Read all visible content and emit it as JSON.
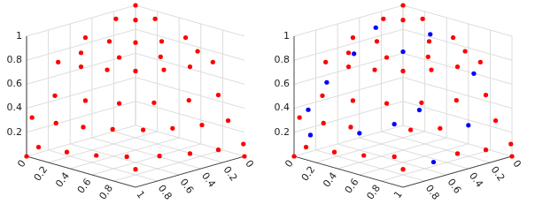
{
  "chart_data": [
    {
      "type": "scatter3d",
      "xlim": [
        0,
        1
      ],
      "ylim": [
        0,
        1
      ],
      "zlim": [
        0,
        1
      ],
      "xticks": [
        0,
        0.2,
        0.4,
        0.6,
        0.8,
        1
      ],
      "yticks": [
        0,
        0.2,
        0.4,
        0.6,
        0.8
      ],
      "zticks": [
        0.2,
        0.4,
        0.6,
        0.8,
        1
      ],
      "grid": true,
      "series": [
        {
          "color": "#ff0000",
          "marker": "circle",
          "values": [
            [
              0,
              0,
              1
            ],
            [
              0.25,
              0.07,
              0.97
            ],
            [
              0.18,
              0.18,
              0.97
            ],
            [
              0.07,
              0.25,
              0.97
            ],
            [
              0.5,
              0.04,
              0.87
            ],
            [
              0.45,
              0.21,
              0.87
            ],
            [
              0.35,
              0.35,
              0.87
            ],
            [
              0.21,
              0.45,
              0.87
            ],
            [
              0.04,
              0.5,
              0.87
            ],
            [
              0.61,
              0.11,
              0.79
            ],
            [
              0.51,
              0.36,
              0.79
            ],
            [
              0.31,
              0.54,
              0.79
            ],
            [
              0.05,
              0.62,
              0.79
            ],
            [
              0.71,
              0,
              0.71
            ],
            [
              0.68,
              0.18,
              0.71
            ],
            [
              0.61,
              0.35,
              0.71
            ],
            [
              0.5,
              0.5,
              0.71
            ],
            [
              0.35,
              0.61,
              0.71
            ],
            [
              0.18,
              0.68,
              0.71
            ],
            [
              0,
              0.71,
              0.71
            ],
            [
              0.86,
              0.12,
              0.5
            ],
            [
              0.8,
              0.34,
              0.5
            ],
            [
              0.69,
              0.54,
              0.5
            ],
            [
              0.52,
              0.69,
              0.5
            ],
            [
              0.32,
              0.81,
              0.5
            ],
            [
              0.1,
              0.86,
              0.5
            ],
            [
              0.95,
              0,
              0.31
            ],
            [
              0.93,
              0.2,
              0.31
            ],
            [
              0.87,
              0.39,
              0.31
            ],
            [
              0.77,
              0.56,
              0.31
            ],
            [
              0.64,
              0.71,
              0.31
            ],
            [
              0.48,
              0.82,
              0.31
            ],
            [
              0.29,
              0.9,
              0.31
            ],
            [
              0.1,
              0.95,
              0.31
            ],
            [
              0.99,
              0.1,
              0.1
            ],
            [
              0.94,
              0.31,
              0.1
            ],
            [
              0.86,
              0.5,
              0.1
            ],
            [
              0.74,
              0.66,
              0.1
            ],
            [
              0.58,
              0.8,
              0.1
            ],
            [
              0.4,
              0.9,
              0.1
            ],
            [
              0.21,
              0.97,
              0.1
            ],
            [
              0,
              0.99,
              0.1
            ],
            [
              1,
              0,
              0
            ],
            [
              0.71,
              0.71,
              0
            ],
            [
              0,
              1,
              0
            ]
          ]
        }
      ]
    },
    {
      "type": "scatter3d",
      "xlim": [
        0,
        1
      ],
      "ylim": [
        0,
        1
      ],
      "zlim": [
        0,
        1
      ],
      "xticks": [
        0,
        0.2,
        0.4,
        0.6,
        0.8
      ],
      "yticks": [
        0,
        0.2,
        0.4,
        0.6,
        0.8,
        1
      ],
      "zticks": [
        0.2,
        0.4,
        0.6,
        0.8,
        1
      ],
      "grid": true,
      "series": [
        {
          "color": "#ff0000",
          "marker": "circle",
          "values": [
            [
              0,
              0,
              1
            ],
            [
              0.25,
              0.07,
              0.97
            ],
            [
              0.18,
              0.18,
              0.97
            ],
            [
              0.07,
              0.25,
              0.97
            ],
            [
              0.5,
              0.04,
              0.87
            ],
            [
              0.45,
              0.21,
              0.87
            ],
            [
              0.21,
              0.45,
              0.87
            ],
            [
              0.04,
              0.5,
              0.87
            ],
            [
              0.61,
              0.11,
              0.79
            ],
            [
              0.51,
              0.36,
              0.79
            ],
            [
              0.31,
              0.54,
              0.79
            ],
            [
              0.05,
              0.62,
              0.79
            ],
            [
              0.71,
              0,
              0.71
            ],
            [
              0.68,
              0.18,
              0.71
            ],
            [
              0.61,
              0.35,
              0.71
            ],
            [
              0.5,
              0.5,
              0.71
            ],
            [
              0.35,
              0.61,
              0.71
            ],
            [
              0.18,
              0.68,
              0.71
            ],
            [
              0,
              0.71,
              0.71
            ],
            [
              0.86,
              0.12,
              0.5
            ],
            [
              0.8,
              0.34,
              0.5
            ],
            [
              0.69,
              0.54,
              0.5
            ],
            [
              0.52,
              0.69,
              0.5
            ],
            [
              0.32,
              0.81,
              0.5
            ],
            [
              0.1,
              0.86,
              0.5
            ],
            [
              0.95,
              0,
              0.31
            ],
            [
              0.93,
              0.2,
              0.31
            ],
            [
              0.87,
              0.39,
              0.31
            ],
            [
              0.64,
              0.71,
              0.31
            ],
            [
              0.48,
              0.82,
              0.31
            ],
            [
              0.1,
              0.95,
              0.31
            ],
            [
              0.99,
              0.1,
              0.1
            ],
            [
              0.94,
              0.31,
              0.1
            ],
            [
              0.86,
              0.5,
              0.1
            ],
            [
              0.74,
              0.66,
              0.1
            ],
            [
              0.4,
              0.9,
              0.1
            ],
            [
              0.21,
              0.97,
              0.1
            ],
            [
              0,
              0.99,
              0.1
            ],
            [
              1,
              0,
              0
            ],
            [
              0.71,
              0.71,
              0
            ],
            [
              0,
              1,
              0
            ]
          ]
        },
        {
          "color": "#0000ff",
          "marker": "circle",
          "values": [
            [
              0.8,
              0.1,
              0.59
            ],
            [
              0.92,
              0.05,
              0.38
            ],
            [
              0.97,
              0.12,
              0.2
            ],
            [
              0.6,
              0.15,
              0.79
            ],
            [
              0.35,
              0.1,
              0.93
            ],
            [
              0.15,
              0.4,
              0.9
            ],
            [
              0.4,
              0.4,
              0.82
            ],
            [
              0.55,
              0.7,
              0.45
            ],
            [
              0.7,
              0.62,
              0.35
            ],
            [
              0.3,
              0.9,
              0.31
            ],
            [
              0.1,
              0.75,
              0.65
            ],
            [
              0.85,
              0.45,
              0.27
            ],
            [
              0.55,
              0.83,
              0.05
            ]
          ]
        }
      ]
    }
  ]
}
